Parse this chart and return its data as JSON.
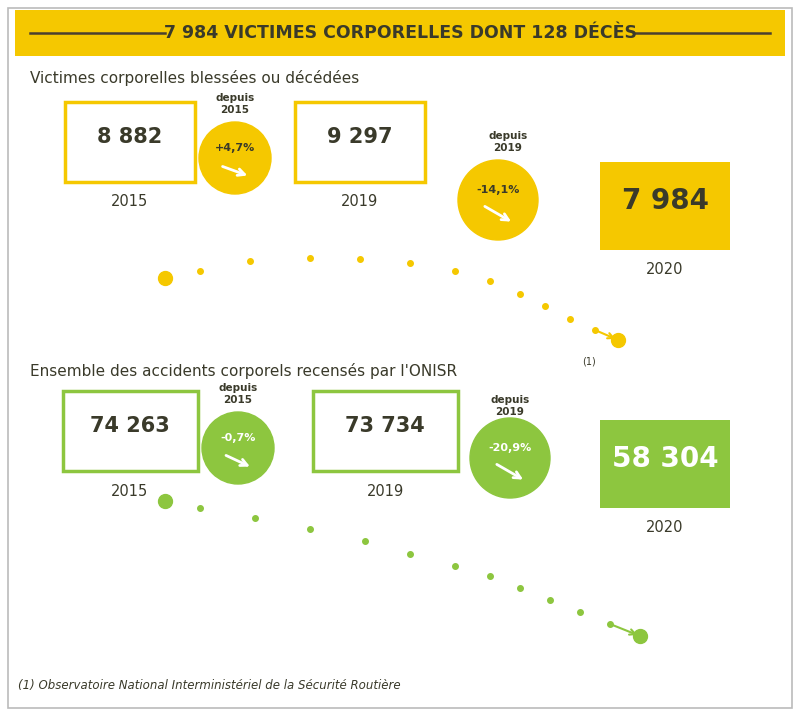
{
  "title": "7 984 VICTIMES CORPORELLES DONT 128 DÉCÈS",
  "title_bg": "#F5C800",
  "title_text_color": "#3a3a2a",
  "bg_color": "#ffffff",
  "section1_label": "Victimes corporelles blessées ou décédées",
  "section1_color": "#F5C800",
  "s1_box1_val": "8 882",
  "s1_box1_year": "2015",
  "s1_circle1_pct": "+4,7%",
  "s1_box2_val": "9 297",
  "s1_box2_year": "2019",
  "s1_circle2_pct": "-14,1%",
  "s1_box3_val": "7 984",
  "s1_box3_year": "2020",
  "section2_color": "#8DC63F",
  "s2_box1_val": "74 263",
  "s2_box1_year": "2015",
  "s2_circle1_pct": "-0,7%",
  "s2_box2_val": "73 734",
  "s2_box2_year": "2019",
  "s2_circle2_pct": "-20,9%",
  "s2_box3_val": "58 304",
  "s2_box3_year": "2020",
  "footnote": "(1) Observatoire National Interministériel de la Sécurité Routière"
}
